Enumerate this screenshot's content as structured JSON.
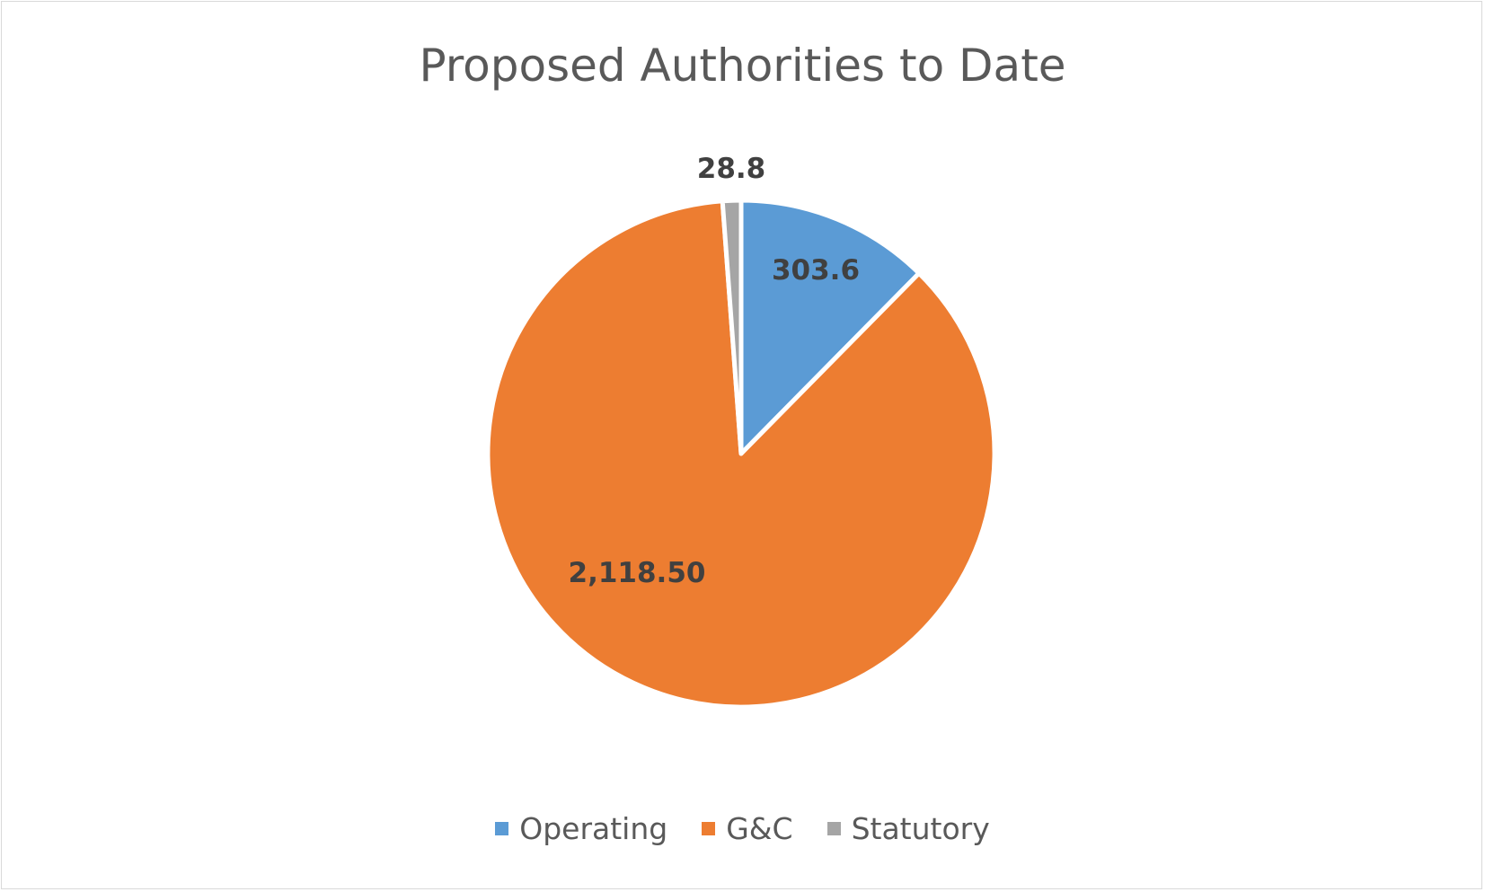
{
  "chart_data": {
    "type": "pie",
    "title": "Proposed Authorities to Date",
    "categories": [
      "Operating",
      "G&C",
      "Statutory"
    ],
    "values": [
      303.6,
      2118.5,
      28.8
    ],
    "data_labels": [
      "303.6",
      "2,118.50",
      "28.8"
    ],
    "colors": [
      "#5b9bd5",
      "#ed7d31",
      "#a5a5a5"
    ],
    "legend_position": "bottom"
  }
}
